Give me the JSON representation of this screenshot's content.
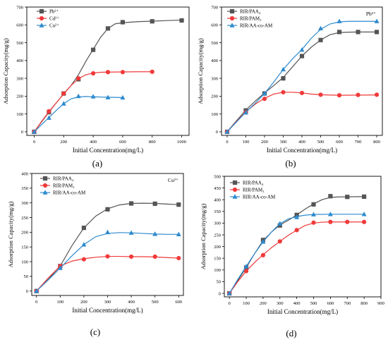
{
  "chart_data": [
    {
      "id": "a",
      "type": "line",
      "panel_label": "(a)",
      "xlabel": "Initial Concentration(mg/L)",
      "ylabel": "Adsorption Capacity(mg/g)",
      "xlim": [
        -50,
        1050
      ],
      "ylim": [
        -20,
        700
      ],
      "xticks": [
        0,
        200,
        400,
        600,
        800,
        1000
      ],
      "yticks": [
        0,
        100,
        200,
        300,
        400,
        500,
        600,
        700
      ],
      "corner_label": "",
      "legend_position": "top-left",
      "series": [
        {
          "name": "Pb²⁺",
          "color": "#555555",
          "marker": "square",
          "x": [
            0,
            100,
            200,
            300,
            400,
            500,
            600,
            800,
            1000
          ],
          "y": [
            0,
            110,
            215,
            295,
            460,
            580,
            615,
            620,
            625
          ],
          "curve_x": [
            0,
            50,
            100,
            150,
            200,
            250,
            300,
            350,
            400,
            450,
            500,
            550,
            600,
            700,
            800,
            900,
            1000
          ],
          "curve_y": [
            0,
            55,
            110,
            163,
            213,
            260,
            320,
            395,
            463,
            530,
            580,
            606,
            612,
            618,
            621,
            624,
            627
          ]
        },
        {
          "name": "Cd²⁺",
          "color": "#f03a3a",
          "marker": "circle",
          "x": [
            0,
            100,
            200,
            300,
            400,
            500,
            600,
            800
          ],
          "y": [
            0,
            115,
            215,
            300,
            328,
            335,
            335,
            337
          ],
          "curve_x": [
            0,
            50,
            100,
            150,
            200,
            250,
            300,
            350,
            400,
            450,
            500,
            600,
            700,
            800
          ],
          "curve_y": [
            0,
            58,
            113,
            163,
            212,
            260,
            298,
            320,
            330,
            334,
            335,
            336,
            337,
            337
          ]
        },
        {
          "name": "Cu²⁺",
          "color": "#2e8bcf",
          "marker": "triangle",
          "x": [
            0,
            100,
            200,
            300,
            400,
            500,
            600
          ],
          "y": [
            0,
            78,
            158,
            200,
            198,
            193,
            192
          ],
          "curve_x": [
            0,
            50,
            100,
            150,
            200,
            250,
            300,
            350,
            400,
            450,
            500,
            550,
            600
          ],
          "curve_y": [
            0,
            40,
            80,
            120,
            158,
            185,
            196,
            198,
            197,
            195,
            194,
            193,
            192
          ]
        }
      ]
    },
    {
      "id": "b",
      "type": "line",
      "panel_label": "(b)",
      "xlabel": "Initial Concentration(mg/L)",
      "ylabel": "Adsorption Capacity(mg/g)",
      "xlim": [
        -30,
        830
      ],
      "ylim": [
        -20,
        700
      ],
      "xticks": [
        0,
        100,
        200,
        300,
        400,
        500,
        600,
        700,
        800
      ],
      "yticks": [
        0,
        100,
        200,
        300,
        400,
        500,
        600,
        700
      ],
      "corner_label": "Pb²⁺",
      "legend_position": "top-left",
      "series": [
        {
          "name": "RIR/PAA₄",
          "color": "#555555",
          "marker": "square",
          "x": [
            0,
            100,
            200,
            300,
            400,
            500,
            600,
            700,
            800
          ],
          "y": [
            0,
            120,
            215,
            300,
            425,
            515,
            560,
            560,
            560
          ],
          "curve_x": [
            0,
            50,
            100,
            150,
            200,
            250,
            300,
            350,
            400,
            450,
            500,
            550,
            600,
            650,
            700,
            750,
            800
          ],
          "curve_y": [
            0,
            62,
            122,
            172,
            218,
            260,
            305,
            365,
            425,
            475,
            515,
            545,
            557,
            559,
            560,
            560,
            560
          ]
        },
        {
          "name": "RIR/PAM₃",
          "color": "#f03a3a",
          "marker": "circle",
          "x": [
            0,
            100,
            200,
            300,
            400,
            500,
            600,
            700,
            800
          ],
          "y": [
            0,
            110,
            185,
            222,
            218,
            208,
            205,
            207,
            208
          ],
          "curve_x": [
            0,
            50,
            100,
            150,
            200,
            250,
            300,
            350,
            400,
            450,
            500,
            600,
            700,
            800
          ],
          "curve_y": [
            0,
            58,
            112,
            155,
            188,
            212,
            222,
            222,
            218,
            212,
            208,
            205,
            206,
            207
          ]
        },
        {
          "name": "RIR/AA-co-AM",
          "color": "#2e8bcf",
          "marker": "triangle",
          "x": [
            0,
            100,
            200,
            300,
            400,
            500,
            600,
            800
          ],
          "y": [
            0,
            108,
            215,
            350,
            460,
            580,
            620,
            620
          ],
          "curve_x": [
            0,
            50,
            100,
            150,
            200,
            250,
            300,
            350,
            400,
            450,
            500,
            550,
            600,
            650,
            700,
            750,
            800
          ],
          "curve_y": [
            0,
            55,
            110,
            160,
            215,
            280,
            350,
            410,
            462,
            525,
            575,
            605,
            617,
            620,
            620,
            620,
            620
          ]
        }
      ]
    },
    {
      "id": "c",
      "type": "line",
      "panel_label": "(c)",
      "xlabel": "Initial Concentration(mg/L)",
      "ylabel": "Adsorption Capacity(mg/g)",
      "xlim": [
        -20,
        620
      ],
      "ylim": [
        -15,
        400
      ],
      "xticks": [
        0,
        100,
        200,
        300,
        400,
        500,
        600
      ],
      "yticks": [
        0,
        50,
        100,
        150,
        200,
        250,
        300,
        350,
        400
      ],
      "corner_label": "Cu²⁺",
      "legend_position": "top-left",
      "series": [
        {
          "name": "RIR/PAA₄",
          "color": "#555555",
          "marker": "square",
          "x": [
            0,
            100,
            200,
            300,
            400,
            500,
            600
          ],
          "y": [
            0,
            85,
            215,
            278,
            298,
            297,
            294
          ],
          "curve_x": [
            0,
            50,
            100,
            150,
            200,
            250,
            300,
            350,
            400,
            450,
            500,
            550,
            600
          ],
          "curve_y": [
            0,
            40,
            85,
            155,
            215,
            255,
            280,
            293,
            298,
            299,
            298,
            296,
            294
          ]
        },
        {
          "name": "RIR/PAM₃",
          "color": "#f03a3a",
          "marker": "circle",
          "x": [
            0,
            100,
            200,
            300,
            400,
            500,
            600
          ],
          "y": [
            0,
            85,
            108,
            118,
            117,
            117,
            112
          ],
          "curve_x": [
            0,
            50,
            100,
            150,
            200,
            250,
            300,
            350,
            400,
            450,
            500,
            550,
            600
          ],
          "curve_y": [
            0,
            45,
            85,
            102,
            110,
            115,
            118,
            118,
            117,
            117,
            116,
            114,
            112
          ]
        },
        {
          "name": "RIR/AA-co-AM",
          "color": "#2e8bcf",
          "marker": "triangle",
          "x": [
            0,
            100,
            200,
            300,
            400,
            500,
            600
          ],
          "y": [
            0,
            78,
            158,
            200,
            198,
            194,
            193
          ],
          "curve_x": [
            0,
            50,
            100,
            150,
            200,
            250,
            300,
            350,
            400,
            450,
            500,
            550,
            600
          ],
          "curve_y": [
            0,
            38,
            78,
            120,
            158,
            185,
            196,
            199,
            198,
            196,
            194,
            193,
            193
          ]
        }
      ]
    },
    {
      "id": "d",
      "type": "line",
      "panel_label": "(d)",
      "xlabel": "Initial Concentration(mg/L)",
      "ylabel": "Adsorption Capacity(mg/g)",
      "xlim": [
        -30,
        900
      ],
      "ylim": [
        -15,
        500
      ],
      "xticks": [
        0,
        100,
        200,
        300,
        400,
        500,
        600,
        700,
        800,
        900
      ],
      "yticks": [
        0,
        50,
        100,
        150,
        200,
        250,
        300,
        350,
        400,
        450,
        500
      ],
      "corner_label": "Cd²⁺",
      "legend_position": "top-left",
      "series": [
        {
          "name": "RIR/PAA₄",
          "color": "#555555",
          "marker": "square",
          "x": [
            0,
            100,
            200,
            300,
            400,
            500,
            600,
            700,
            800
          ],
          "y": [
            0,
            110,
            228,
            290,
            335,
            380,
            415,
            412,
            413
          ],
          "curve_x": [
            0,
            50,
            100,
            150,
            200,
            250,
            300,
            350,
            400,
            450,
            500,
            550,
            600,
            650,
            700,
            750,
            800
          ],
          "curve_y": [
            0,
            55,
            110,
            170,
            225,
            262,
            292,
            312,
            335,
            360,
            382,
            400,
            410,
            412,
            412,
            413,
            413
          ]
        },
        {
          "name": "RIR/PAM₃",
          "color": "#f03a3a",
          "marker": "circle",
          "x": [
            0,
            100,
            200,
            300,
            400,
            500,
            600,
            700,
            800
          ],
          "y": [
            0,
            95,
            163,
            222,
            270,
            302,
            305,
            305,
            305
          ],
          "curve_x": [
            0,
            50,
            100,
            150,
            200,
            250,
            300,
            350,
            400,
            450,
            500,
            550,
            600,
            700,
            800
          ],
          "curve_y": [
            0,
            50,
            95,
            132,
            165,
            195,
            222,
            248,
            270,
            290,
            300,
            304,
            305,
            305,
            305
          ]
        },
        {
          "name": "RIR/AA-co-AM",
          "color": "#2e8bcf",
          "marker": "triangle",
          "x": [
            0,
            100,
            200,
            300,
            400,
            500,
            600,
            800
          ],
          "y": [
            0,
            115,
            220,
            298,
            325,
            337,
            338,
            338
          ],
          "curve_x": [
            0,
            50,
            100,
            150,
            200,
            250,
            300,
            350,
            400,
            450,
            500,
            600,
            700,
            800
          ],
          "curve_y": [
            0,
            60,
            115,
            170,
            220,
            262,
            298,
            318,
            328,
            334,
            337,
            338,
            338,
            338
          ]
        }
      ]
    }
  ]
}
